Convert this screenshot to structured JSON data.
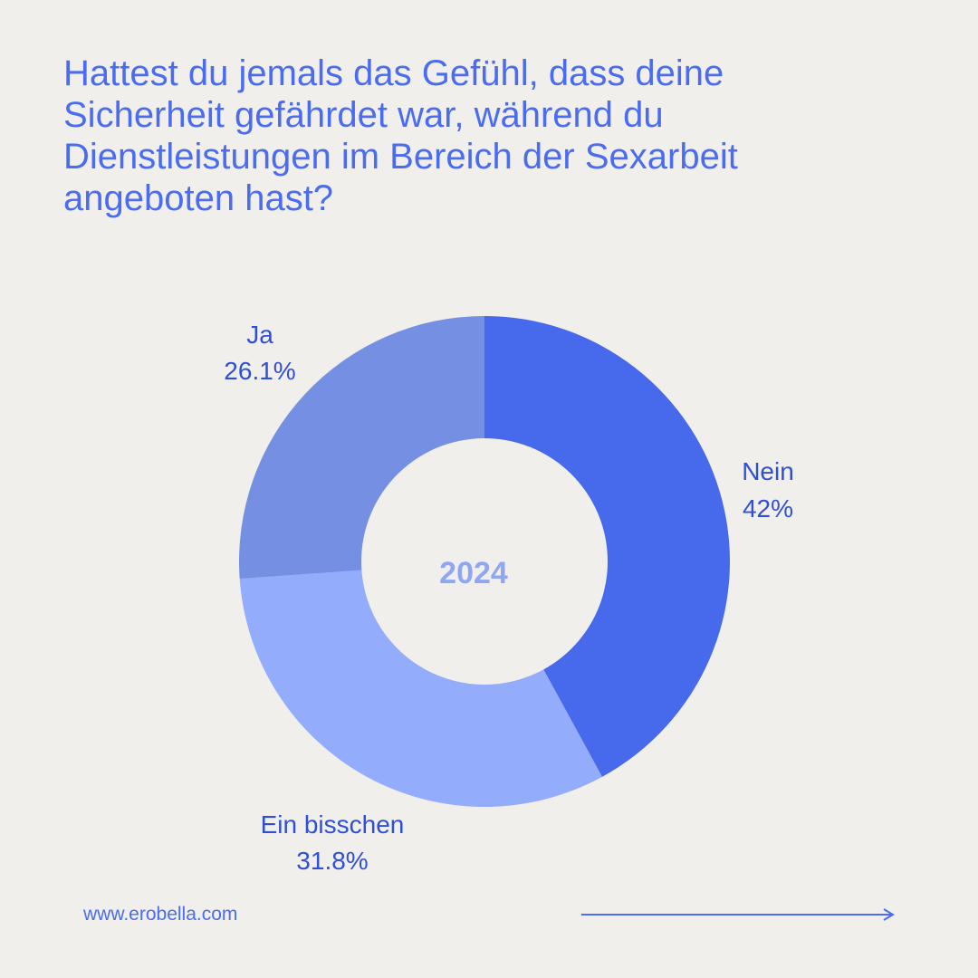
{
  "title": "Hattest du jemals das Gefühl, dass deine Sicherheit gefährdet war, während du Dienstleistungen im Bereich der Sexarbeit angeboten hast?",
  "footer": {
    "url": "www.erobella.com"
  },
  "colors": {
    "background": "#f1efec",
    "accent": "#4a6cf0"
  },
  "chart_data": {
    "type": "pie",
    "subtype": "donut",
    "center_label": "2024",
    "slices": [
      {
        "label": "Nein",
        "value": 42,
        "value_label": "42%",
        "color": "#4769ec"
      },
      {
        "label": "Ein bisschen",
        "value": 31.8,
        "value_label": "31.8%",
        "color": "#93acfb"
      },
      {
        "label": "Ja",
        "value": 26.1,
        "value_label": "26.1%",
        "color": "#7590e2"
      }
    ],
    "legend": "none"
  }
}
